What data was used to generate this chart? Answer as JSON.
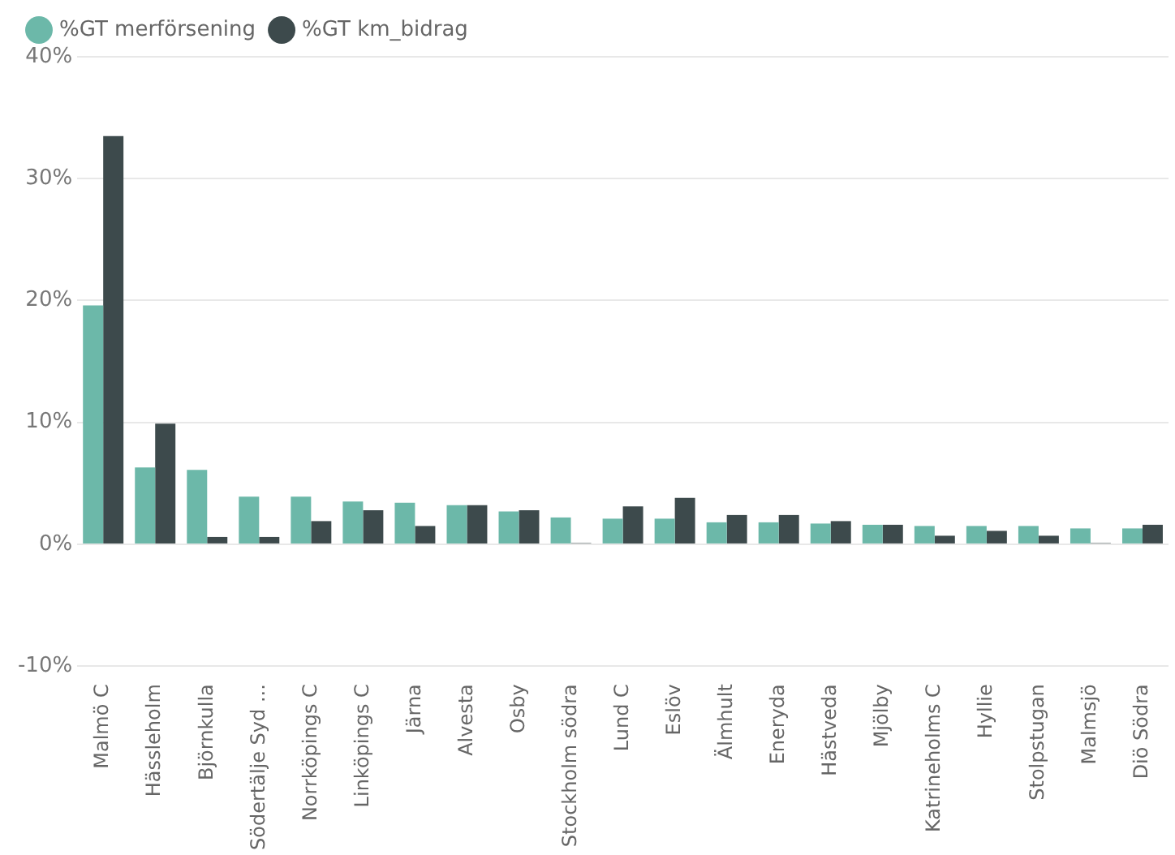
{
  "chart_data": {
    "type": "bar",
    "categories": [
      "Malmö C",
      "Hässleholm",
      "Björnkulla",
      "Södertälje Syd ...",
      "Norrköpings C",
      "Linköpings C",
      "Järna",
      "Alvesta",
      "Osby",
      "Stockholm södra",
      "Lund C",
      "Eslöv",
      "Älmhult",
      "Eneryda",
      "Hästveda",
      "Mjölby",
      "Katrineholms C",
      "Hyllie",
      "Stolpstugan",
      "Malmsjö",
      "Diö Södra"
    ],
    "series": [
      {
        "name": "%GT merförsening",
        "color": "#6cb8a9",
        "values": [
          19.6,
          6.3,
          6.1,
          3.9,
          3.9,
          3.5,
          3.4,
          3.2,
          2.7,
          2.2,
          2.1,
          2.1,
          1.8,
          1.8,
          1.7,
          1.6,
          1.5,
          1.5,
          1.5,
          1.3,
          1.3
        ]
      },
      {
        "name": "%GT km_bidrag",
        "color": "#3d4a4c",
        "values": [
          33.5,
          9.9,
          0.6,
          0.6,
          1.9,
          2.8,
          1.5,
          3.2,
          2.8,
          0.1,
          3.1,
          3.8,
          2.4,
          2.4,
          1.9,
          1.6,
          0.7,
          1.1,
          0.7,
          0.1,
          1.6
        ]
      }
    ],
    "ylim": [
      -10,
      40
    ],
    "yticks": [
      {
        "value": -10,
        "label": "-10%"
      },
      {
        "value": 0,
        "label": "0%"
      },
      {
        "value": 10,
        "label": "10%"
      },
      {
        "value": 20,
        "label": "20%"
      },
      {
        "value": 30,
        "label": "30%"
      },
      {
        "value": 40,
        "label": "40%"
      }
    ],
    "grid": "y",
    "legend": "top left"
  }
}
